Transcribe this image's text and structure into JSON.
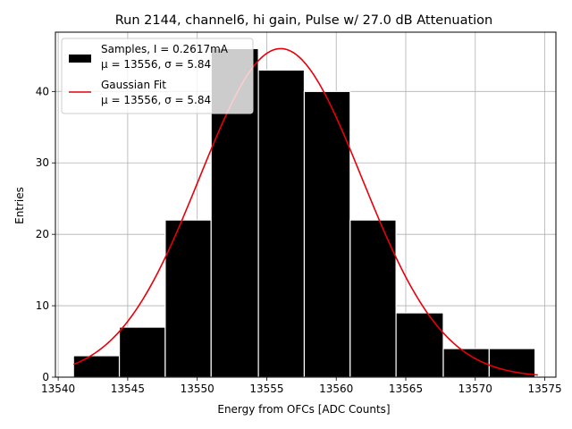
{
  "chart_data": {
    "type": "bar",
    "title": "Run 2144, channel6, hi gain, Pulse w/ 27.0 dB Attenuation",
    "xlabel": "Energy from OFCs [ADC Counts]",
    "ylabel": "Entries",
    "xlim": [
      13539.8,
      13575.8
    ],
    "ylim": [
      0,
      48.3
    ],
    "xticks": [
      13540,
      13545,
      13550,
      13555,
      13560,
      13565,
      13570,
      13575
    ],
    "yticks": [
      0,
      10,
      20,
      30,
      40
    ],
    "grid": true,
    "legend_position": "top-left",
    "colors": {
      "bars": "#000000",
      "bar_edge": "#ffffff",
      "fit": "#e8000b",
      "grid": "#b0b0b0"
    },
    "bins": [
      {
        "x0": 13541.1,
        "x1": 13544.4,
        "count": 3
      },
      {
        "x0": 13544.4,
        "x1": 13547.7,
        "count": 7
      },
      {
        "x0": 13547.7,
        "x1": 13551.0,
        "count": 22
      },
      {
        "x0": 13551.0,
        "x1": 13554.4,
        "count": 46
      },
      {
        "x0": 13554.4,
        "x1": 13557.7,
        "count": 43
      },
      {
        "x0": 13557.7,
        "x1": 13561.0,
        "count": 40
      },
      {
        "x0": 13561.0,
        "x1": 13564.3,
        "count": 22
      },
      {
        "x0": 13564.3,
        "x1": 13567.7,
        "count": 9
      },
      {
        "x0": 13567.7,
        "x1": 13571.0,
        "count": 4
      },
      {
        "x0": 13571.0,
        "x1": 13574.3,
        "count": 4
      }
    ],
    "fit": {
      "mu": 13556,
      "sigma": 5.84,
      "amplitude": 46,
      "x_range": [
        13541.1,
        13574.5
      ]
    },
    "legend": [
      {
        "type": "bar",
        "line1": "Samples, I = 0.2617mA",
        "line2": "μ = 13556, σ = 5.84"
      },
      {
        "type": "line",
        "line1": "Gaussian Fit",
        "line2": "μ = 13556, σ = 5.84"
      }
    ]
  }
}
